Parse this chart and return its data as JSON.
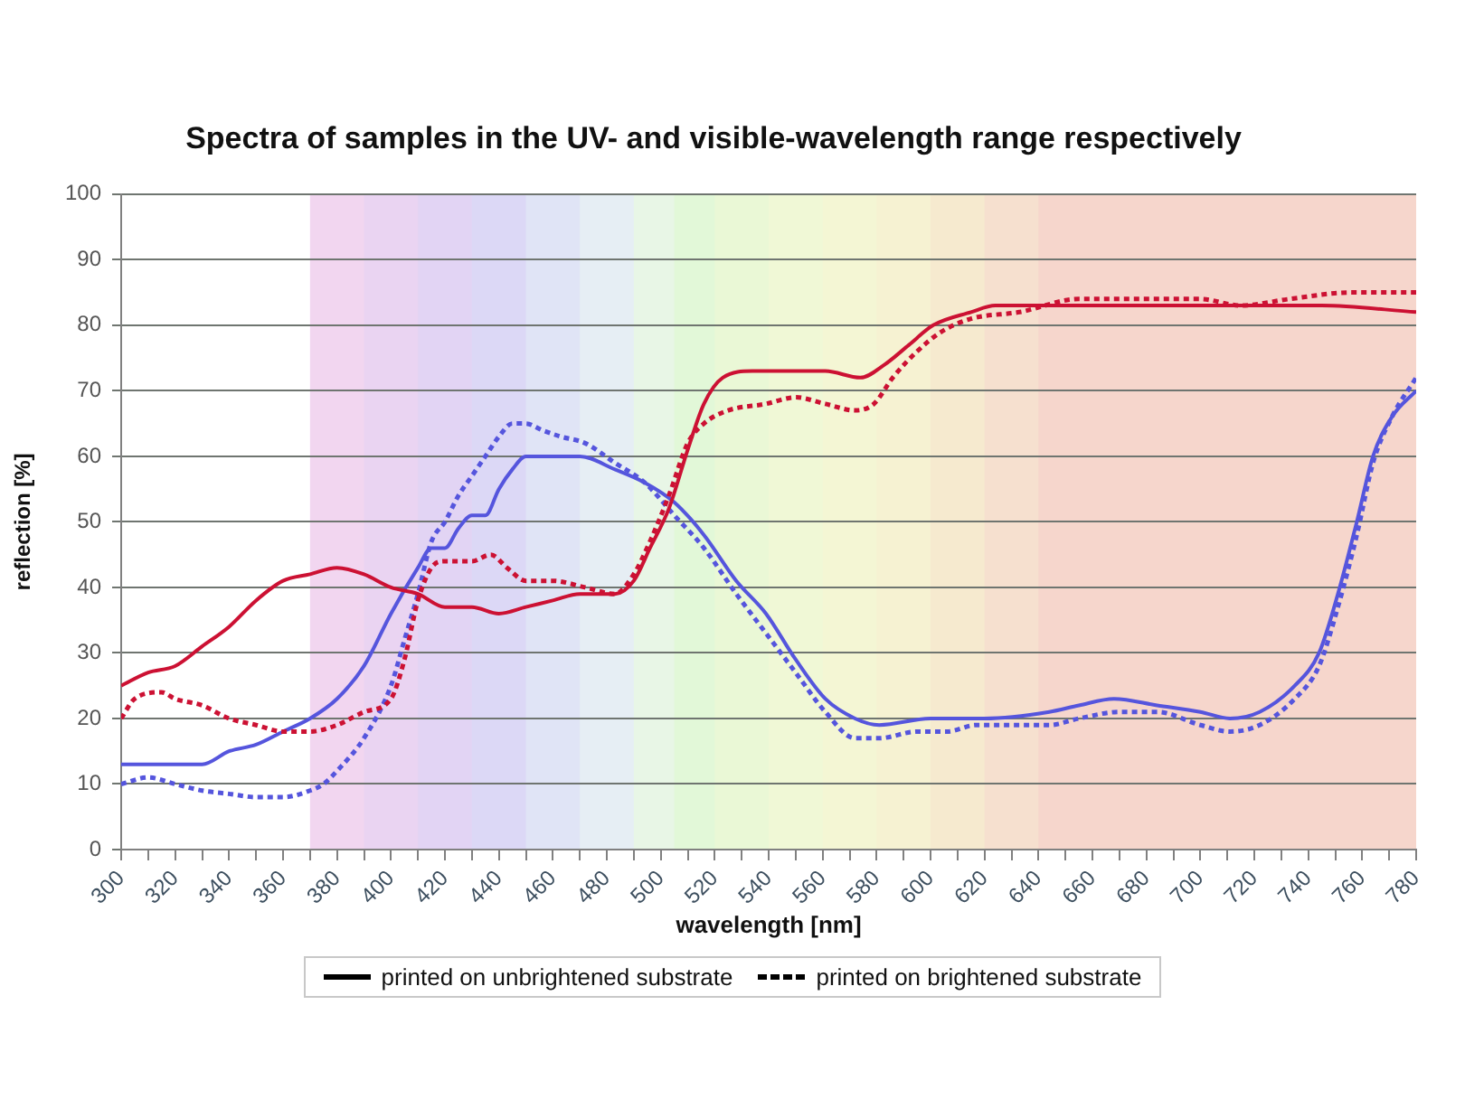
{
  "chart_data": {
    "type": "line",
    "title": "Spectra of samples in the UV- and visible-wavelength range respectively",
    "xlabel": "wavelength [nm]",
    "ylabel": "reflection [%]",
    "xlim": [
      300,
      780
    ],
    "xticks": [
      300,
      {
        "value": 310,
        "label": null
      },
      320,
      {
        "value": 330,
        "label": null
      },
      340,
      {
        "value": 350,
        "label": null
      },
      360,
      {
        "value": 370,
        "label": null
      },
      380,
      {
        "value": 390,
        "label": null
      },
      400,
      {
        "value": 410,
        "label": null
      },
      420,
      {
        "value": 430,
        "label": null
      },
      440,
      {
        "value": 450,
        "label": null
      },
      460,
      {
        "value": 470,
        "label": null
      },
      480,
      {
        "value": 490,
        "label": null
      },
      500,
      {
        "value": 510,
        "label": null
      },
      520,
      {
        "value": 530,
        "label": null
      },
      540,
      {
        "value": 550,
        "label": null
      },
      560,
      {
        "value": 570,
        "label": null
      },
      580,
      {
        "value": 590,
        "label": null
      },
      600,
      {
        "value": 610,
        "label": null
      },
      620,
      {
        "value": 630,
        "label": null
      },
      640,
      {
        "value": 650,
        "label": null
      },
      660,
      {
        "value": 670,
        "label": null
      },
      680,
      {
        "value": 690,
        "label": null
      },
      700,
      {
        "value": 710,
        "label": null
      },
      720,
      {
        "value": 730,
        "label": null
      },
      740,
      {
        "value": 750,
        "label": null
      },
      760,
      {
        "value": 770,
        "label": null
      },
      780
    ],
    "ylim": [
      0,
      100
    ],
    "yticks": [
      0,
      10,
      20,
      30,
      40,
      50,
      60,
      70,
      80,
      90,
      100
    ],
    "grid": "y",
    "marker": "none",
    "bands": [
      {
        "axis": "x",
        "from": 370,
        "to": 390,
        "color": "#f2d6f0"
      },
      {
        "axis": "x",
        "from": 390,
        "to": 410,
        "color": "#ead4f2"
      },
      {
        "axis": "x",
        "from": 410,
        "to": 430,
        "color": "#e2d4f4"
      },
      {
        "axis": "x",
        "from": 430,
        "to": 450,
        "color": "#dcd8f6"
      },
      {
        "axis": "x",
        "from": 450,
        "to": 470,
        "color": "#e0e4f6"
      },
      {
        "axis": "x",
        "from": 470,
        "to": 490,
        "color": "#e6eef4"
      },
      {
        "axis": "x",
        "from": 490,
        "to": 505,
        "color": "#e8f6e6"
      },
      {
        "axis": "x",
        "from": 505,
        "to": 520,
        "color": "#e2f8d8"
      },
      {
        "axis": "x",
        "from": 520,
        "to": 540,
        "color": "#eaf8d6"
      },
      {
        "axis": "x",
        "from": 540,
        "to": 560,
        "color": "#f0f8d6"
      },
      {
        "axis": "x",
        "from": 560,
        "to": 580,
        "color": "#f4f6d4"
      },
      {
        "axis": "x",
        "from": 580,
        "to": 600,
        "color": "#f6f2d2"
      },
      {
        "axis": "x",
        "from": 600,
        "to": 620,
        "color": "#f6eacf"
      },
      {
        "axis": "x",
        "from": 620,
        "to": 640,
        "color": "#f6e0cf"
      },
      {
        "axis": "x",
        "from": 640,
        "to": 780,
        "color": "#f6d6cc"
      }
    ],
    "annotations": [
      "printed on unbrightened substrate",
      "printed on brightened substrate"
    ],
    "series": [
      {
        "color": "#cc1133",
        "line_style": "solid",
        "x": [
          300,
          310,
          320,
          330,
          340,
          350,
          360,
          370,
          380,
          390,
          400,
          410,
          420,
          430,
          440,
          450,
          460,
          470,
          483,
          490,
          496,
          503,
          510,
          516,
          523,
          534,
          545,
          561,
          574,
          583,
          592,
          601,
          615,
          624,
          645,
          680,
          710,
          745,
          780
        ],
        "values": [
          25,
          27,
          28,
          31,
          34,
          38,
          41,
          42,
          43,
          42,
          40,
          39,
          37,
          37,
          36,
          37,
          38,
          39,
          39,
          41,
          46,
          52,
          61,
          68,
          72,
          73,
          73,
          73,
          72,
          74,
          77,
          80,
          82,
          83,
          83,
          83,
          83,
          83,
          82
        ]
      },
      {
        "color": "#cc1133",
        "line_style": "dotted",
        "x": [
          300,
          305,
          315,
          320,
          330,
          340,
          350,
          360,
          370,
          380,
          390,
          400,
          405,
          410,
          415,
          420,
          430,
          437,
          443,
          450,
          460,
          472,
          483,
          490,
          496,
          503,
          510,
          516,
          525,
          539,
          550,
          561,
          572,
          579,
          586,
          595,
          604,
          615,
          633,
          655,
          680,
          700,
          715,
          733,
          756,
          780
        ],
        "values": [
          20,
          23,
          24,
          23,
          22,
          20,
          19,
          18,
          18,
          19,
          21,
          23,
          29,
          38,
          43,
          44,
          44,
          45,
          43,
          41,
          41,
          40,
          39,
          42,
          47,
          54,
          62,
          65,
          67,
          68,
          69,
          68,
          67,
          68,
          72,
          76,
          79,
          81,
          82,
          84,
          84,
          84,
          83,
          84,
          85,
          85
        ]
      },
      {
        "color": "#5555dd",
        "line_style": "solid",
        "x": [
          300,
          320,
          330,
          340,
          350,
          360,
          370,
          380,
          390,
          400,
          410,
          415,
          420,
          425,
          430,
          435,
          440,
          445,
          450,
          460,
          470,
          483,
          494,
          505,
          516,
          528,
          539,
          550,
          561,
          572,
          581,
          600,
          620,
          644,
          655,
          668,
          684,
          700,
          711,
          722,
          735,
          744,
          751,
          758,
          764,
          771,
          780
        ],
        "values": [
          13,
          13,
          13,
          15,
          16,
          18,
          20,
          23,
          28,
          36,
          43,
          46,
          46,
          49,
          51,
          51,
          55,
          58,
          60,
          60,
          60,
          58,
          56,
          53,
          48,
          41,
          36,
          29,
          23,
          20,
          19,
          20,
          20,
          21,
          22,
          23,
          22,
          21,
          20,
          21,
          25,
          30,
          39,
          50,
          60,
          66,
          70
        ]
      },
      {
        "color": "#5555dd",
        "line_style": "dotted",
        "x": [
          300,
          310,
          320,
          330,
          340,
          350,
          360,
          370,
          375,
          380,
          390,
          400,
          405,
          410,
          415,
          420,
          425,
          430,
          435,
          440,
          445,
          450,
          456,
          463,
          472,
          483,
          494,
          505,
          516,
          528,
          539,
          550,
          561,
          572,
          581,
          595,
          606,
          617,
          644,
          655,
          670,
          684,
          700,
          711,
          722,
          735,
          744,
          751,
          758,
          764,
          771,
          780
        ],
        "values": [
          10,
          11,
          10,
          9,
          8.5,
          8,
          8,
          9,
          10,
          12,
          17,
          25,
          32,
          39,
          47,
          50,
          54,
          57,
          60,
          63,
          65,
          65,
          64,
          63,
          62,
          59,
          56,
          51,
          46,
          39,
          33,
          27,
          21,
          17,
          17,
          18,
          18,
          19,
          19,
          20,
          21,
          21,
          19,
          18,
          19,
          23,
          28,
          37,
          48,
          59,
          66,
          72
        ]
      }
    ]
  }
}
